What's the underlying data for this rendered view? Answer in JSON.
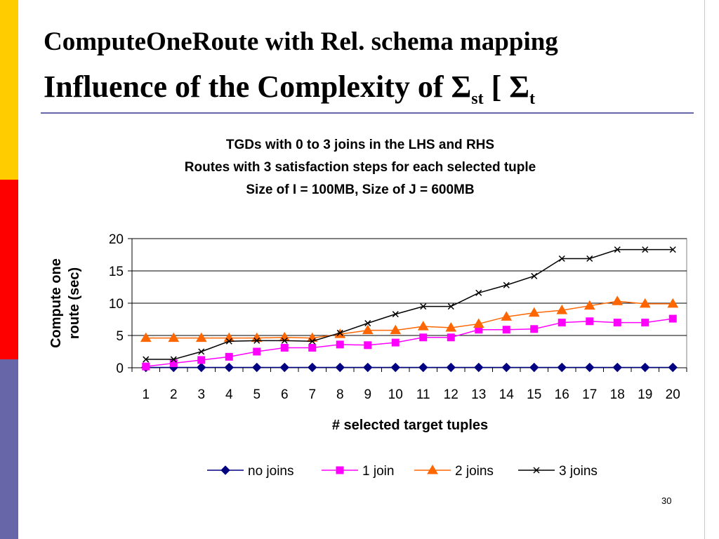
{
  "slide": {
    "title_line1": "ComputeOneRoute with Rel. schema mapping",
    "title_line2_main": "Influence of  the Complexity of  Σ",
    "title_sub_st": "st",
    "title_bracket": " [ Σ",
    "title_sub_t": "t",
    "page_number": "30",
    "colors": {
      "bar_yellow": "#ffcc00",
      "bar_red": "#ff0000",
      "bar_purple": "#6666a8",
      "rule": "#6666a8"
    }
  },
  "chart_data": {
    "type": "line",
    "title": [
      "TGDs with 0 to 3 joins in the LHS and RHS",
      "Routes with 3 satisfaction steps for each selected tuple",
      "Size of I = 100MB, Size of J = 600MB"
    ],
    "xlabel": "# selected target tuples",
    "ylabel": [
      "Compute one",
      "route (sec)"
    ],
    "x": [
      1,
      2,
      3,
      4,
      5,
      6,
      7,
      8,
      9,
      10,
      11,
      12,
      13,
      14,
      15,
      16,
      17,
      18,
      19,
      20
    ],
    "ylim": [
      0,
      20
    ],
    "yticks": [
      0,
      5,
      10,
      15,
      20
    ],
    "grid": "horizontal",
    "legend_position": "bottom",
    "series": [
      {
        "name": "no joins",
        "color": "#000080",
        "marker": "diamond",
        "values": [
          0.05,
          0.05,
          0.05,
          0.05,
          0.05,
          0.05,
          0.05,
          0.05,
          0.05,
          0.05,
          0.05,
          0.05,
          0.05,
          0.05,
          0.05,
          0.05,
          0.05,
          0.05,
          0.05,
          0.05
        ]
      },
      {
        "name": "1 join",
        "color": "#ff00ff",
        "marker": "square",
        "values": [
          0.2,
          0.7,
          1.2,
          1.7,
          2.5,
          3.1,
          3.1,
          3.6,
          3.5,
          3.9,
          4.7,
          4.7,
          5.9,
          5.9,
          6.0,
          7.0,
          7.2,
          7.0,
          7.0,
          7.6
        ]
      },
      {
        "name": "2 joins",
        "color": "#ff6600",
        "marker": "triangle",
        "values": [
          4.6,
          4.6,
          4.6,
          4.6,
          4.6,
          4.7,
          4.6,
          5.2,
          5.8,
          5.8,
          6.4,
          6.2,
          6.8,
          7.9,
          8.5,
          8.9,
          9.6,
          10.3,
          9.9,
          9.9
        ]
      },
      {
        "name": "3 joins",
        "color": "#000000",
        "marker": "x",
        "values": [
          1.3,
          1.3,
          2.5,
          4.1,
          4.2,
          4.2,
          4.1,
          5.4,
          6.9,
          8.3,
          9.5,
          9.5,
          11.6,
          12.8,
          14.2,
          16.9,
          16.9,
          18.3,
          18.3,
          18.3
        ]
      }
    ]
  }
}
